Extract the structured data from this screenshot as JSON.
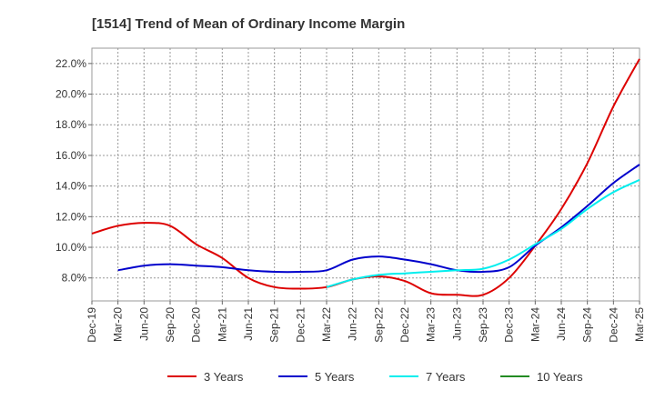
{
  "chart_data": {
    "type": "line",
    "title": "[1514]  Trend of Mean of Ordinary Income Margin",
    "xlabel": "",
    "ylabel": "",
    "ylim": [
      6.5,
      23.0
    ],
    "y_ticks": [
      "8.0%",
      "10.0%",
      "12.0%",
      "14.0%",
      "16.0%",
      "18.0%",
      "20.0%",
      "22.0%"
    ],
    "x_ticks": [
      "Dec-19",
      "Mar-20",
      "Jun-20",
      "Sep-20",
      "Dec-20",
      "Mar-21",
      "Jun-21",
      "Sep-21",
      "Dec-21",
      "Mar-22",
      "Jun-22",
      "Sep-22",
      "Dec-22",
      "Mar-23",
      "Jun-23",
      "Sep-23",
      "Dec-23",
      "Mar-24",
      "Jun-24",
      "Sep-24",
      "Dec-24",
      "Mar-25"
    ],
    "grid": true,
    "legend_position": "bottom",
    "series": [
      {
        "name": "3 Years",
        "color": "#dd0000",
        "points": [
          [
            0,
            10.9
          ],
          [
            1,
            11.4
          ],
          [
            2,
            11.6
          ],
          [
            3,
            11.4
          ],
          [
            4,
            10.2
          ],
          [
            5,
            9.3
          ],
          [
            6,
            8.0
          ],
          [
            7,
            7.4
          ],
          [
            8,
            7.3
          ],
          [
            9,
            7.4
          ],
          [
            10,
            7.9
          ],
          [
            11,
            8.1
          ],
          [
            12,
            7.8
          ],
          [
            13,
            7.0
          ],
          [
            14,
            6.9
          ],
          [
            15,
            6.9
          ],
          [
            16,
            8.0
          ],
          [
            17,
            10.1
          ],
          [
            18,
            12.5
          ],
          [
            19,
            15.5
          ],
          [
            20,
            19.2
          ],
          [
            21,
            22.3
          ]
        ]
      },
      {
        "name": "5 Years",
        "color": "#0000cc",
        "points": [
          [
            1,
            8.5
          ],
          [
            2,
            8.8
          ],
          [
            3,
            8.9
          ],
          [
            4,
            8.8
          ],
          [
            5,
            8.7
          ],
          [
            6,
            8.5
          ],
          [
            7,
            8.4
          ],
          [
            8,
            8.4
          ],
          [
            9,
            8.5
          ],
          [
            10,
            9.2
          ],
          [
            11,
            9.4
          ],
          [
            12,
            9.2
          ],
          [
            13,
            8.9
          ],
          [
            14,
            8.5
          ],
          [
            15,
            8.4
          ],
          [
            16,
            8.7
          ],
          [
            17,
            10.1
          ],
          [
            18,
            11.3
          ],
          [
            19,
            12.7
          ],
          [
            20,
            14.2
          ],
          [
            21,
            15.4
          ]
        ]
      },
      {
        "name": "7 Years",
        "color": "#00eeee",
        "points": [
          [
            9,
            7.4
          ],
          [
            10,
            7.9
          ],
          [
            11,
            8.2
          ],
          [
            12,
            8.3
          ],
          [
            13,
            8.4
          ],
          [
            14,
            8.5
          ],
          [
            15,
            8.6
          ],
          [
            16,
            9.2
          ],
          [
            17,
            10.2
          ],
          [
            18,
            11.2
          ],
          [
            19,
            12.5
          ],
          [
            20,
            13.6
          ],
          [
            21,
            14.4
          ]
        ]
      },
      {
        "name": "10 Years",
        "color": "#228b22",
        "points": []
      }
    ]
  }
}
